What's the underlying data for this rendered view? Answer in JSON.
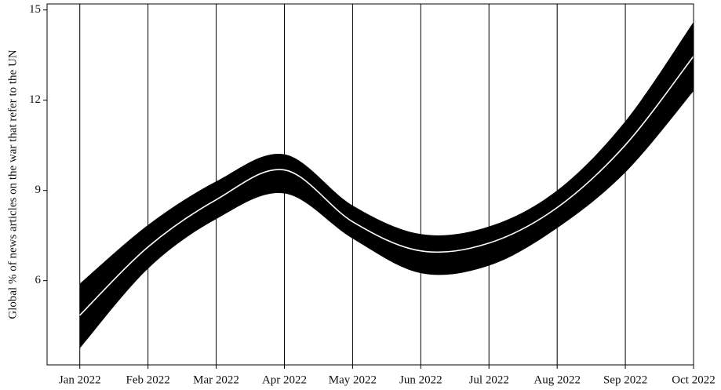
{
  "chart_data": {
    "type": "band_line",
    "ylabel": "Global % of news articles on the war that refer to the UN",
    "x": [
      "Jan 2022",
      "Feb 2022",
      "Mar 2022",
      "Apr 2022",
      "May 2022",
      "Jun 2022",
      "Jul 2022",
      "Aug 2022",
      "Sep 2022",
      "Oct 2022"
    ],
    "values": [
      4.85,
      7.12,
      8.69,
      9.68,
      7.96,
      6.99,
      7.25,
      8.43,
      10.51,
      13.46
    ],
    "upper": [
      5.9,
      7.85,
      9.3,
      10.2,
      8.5,
      7.55,
      7.8,
      9.0,
      11.3,
      14.6
    ],
    "lower": [
      3.75,
      6.4,
      8.05,
      8.9,
      7.4,
      6.25,
      6.5,
      7.75,
      9.6,
      12.3
    ],
    "band_color": "#000000",
    "line_color": "#ffffff",
    "ylim": [
      3.2,
      15.2
    ],
    "yticks": [
      6,
      9,
      12,
      15
    ],
    "grid": "x"
  }
}
